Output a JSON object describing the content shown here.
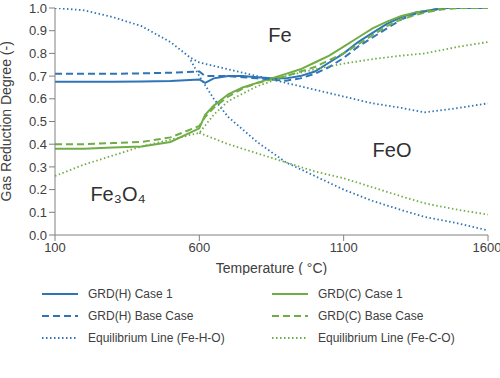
{
  "chart_data": {
    "type": "line",
    "x_label": "Temperature ( °C)",
    "y_label": "Gas Reduction Degree (-)",
    "xlim": [
      100,
      1600
    ],
    "xticks": [
      100,
      600,
      1100,
      1600
    ],
    "ylim": [
      0,
      1
    ],
    "yticks": [
      {
        "value": 0,
        "label": "0.0"
      },
      {
        "value": 0.1,
        "label": "0.1"
      },
      {
        "value": 0.2,
        "label": "0.2"
      },
      {
        "value": 0.3,
        "label": "0.3"
      },
      {
        "value": 0.4,
        "label": "0.4"
      },
      {
        "value": 0.5,
        "label": "0.5"
      },
      {
        "value": 0.6,
        "label": "0.6"
      },
      {
        "value": 0.7,
        "label": "0.7"
      },
      {
        "value": 0.8,
        "label": "0.8"
      },
      {
        "value": 0.9,
        "label": "0.9"
      },
      {
        "value": 1,
        "label": "1.0"
      }
    ],
    "grid": false,
    "legend": "bottom",
    "annotations": [
      "Fe",
      "FeO",
      "Fe₃O₄"
    ],
    "series": [
      {
        "name": "GRD(H) Case 1",
        "color": "#2e75b6",
        "line_style": "solid",
        "x": [
          100,
          200,
          300,
          400,
          500,
          600,
          620,
          650,
          700,
          750,
          800,
          850,
          900,
          950,
          1000,
          1050,
          1100,
          1150,
          1200,
          1250,
          1300,
          1350,
          1400,
          1450,
          1500,
          1550,
          1600
        ],
        "values": [
          0.675,
          0.675,
          0.675,
          0.676,
          0.678,
          0.685,
          0.67,
          0.69,
          0.7,
          0.7,
          0.695,
          0.69,
          0.69,
          0.7,
          0.72,
          0.76,
          0.8,
          0.85,
          0.89,
          0.93,
          0.96,
          0.98,
          0.99,
          1.0,
          1.0,
          1.0,
          1.0
        ]
      },
      {
        "name": "GRD(C) Case 1",
        "color": "#70ad47",
        "line_style": "solid",
        "x": [
          100,
          200,
          300,
          400,
          500,
          600,
          620,
          650,
          700,
          750,
          800,
          850,
          900,
          950,
          1000,
          1050,
          1100,
          1150,
          1200,
          1250,
          1300,
          1350,
          1400,
          1450,
          1500,
          1550,
          1600
        ],
        "values": [
          0.38,
          0.38,
          0.385,
          0.39,
          0.41,
          0.47,
          0.53,
          0.57,
          0.62,
          0.65,
          0.67,
          0.69,
          0.71,
          0.73,
          0.76,
          0.79,
          0.83,
          0.87,
          0.91,
          0.94,
          0.965,
          0.98,
          0.99,
          1.0,
          1.0,
          1.0,
          1.0
        ]
      },
      {
        "name": "GRD(H) Base Case",
        "color": "#2e75b6",
        "line_style": "dashed",
        "x": [
          100,
          200,
          300,
          400,
          500,
          600,
          620,
          650,
          700,
          750,
          800,
          850,
          900,
          950,
          1000,
          1050,
          1100,
          1150,
          1200,
          1250,
          1300,
          1350,
          1400,
          1450,
          1500,
          1550,
          1600
        ],
        "values": [
          0.71,
          0.71,
          0.71,
          0.712,
          0.715,
          0.72,
          0.7,
          0.7,
          0.7,
          0.695,
          0.69,
          0.685,
          0.68,
          0.69,
          0.71,
          0.74,
          0.78,
          0.83,
          0.87,
          0.91,
          0.95,
          0.975,
          0.99,
          1.0,
          1.0,
          1.0,
          1.0
        ]
      },
      {
        "name": "GRD(C) Base Case",
        "color": "#70ad47",
        "line_style": "dashed",
        "x": [
          100,
          200,
          300,
          400,
          500,
          600,
          620,
          650,
          700,
          750,
          800,
          850,
          900,
          950,
          1000,
          1050,
          1100,
          1150,
          1200,
          1250,
          1300,
          1350,
          1400,
          1450,
          1500,
          1550,
          1600
        ],
        "values": [
          0.4,
          0.4,
          0.405,
          0.41,
          0.43,
          0.48,
          0.52,
          0.56,
          0.61,
          0.645,
          0.67,
          0.685,
          0.7,
          0.72,
          0.74,
          0.77,
          0.8,
          0.84,
          0.88,
          0.92,
          0.95,
          0.97,
          0.985,
          0.995,
          1.0,
          1.0,
          1.0
        ]
      },
      {
        "name": "Equilibrium Line (Fe-H-O)",
        "color": "#2e75b6",
        "line_style": "dotted",
        "x": [
          100,
          200,
          300,
          400,
          500,
          570,
          600,
          700,
          800,
          900,
          1000,
          1100,
          1200,
          1300,
          1380,
          1500,
          1600,
          570,
          570,
          600,
          650,
          700,
          800,
          900,
          1000,
          1100,
          1200,
          1300,
          1380,
          1500,
          1600
        ],
        "values": [
          1.0,
          0.99,
          0.96,
          0.92,
          0.85,
          0.78,
          0.76,
          0.73,
          0.7,
          0.67,
          0.64,
          0.61,
          0.58,
          0.56,
          0.54,
          0.56,
          0.58,
          null,
          0.77,
          0.7,
          0.6,
          0.52,
          0.41,
          0.32,
          0.26,
          0.2,
          0.15,
          0.11,
          0.08,
          0.05,
          0.02
        ]
      },
      {
        "name": "Equilibrium Line (Fe-C-O)",
        "color": "#70ad47",
        "line_style": "dotted",
        "x": [
          100,
          200,
          300,
          400,
          500,
          600,
          650,
          700,
          800,
          900,
          1000,
          1100,
          1200,
          1300,
          1380,
          1500,
          1600,
          600,
          600,
          700,
          800,
          900,
          1000,
          1100,
          1200,
          1300,
          1380,
          1500,
          1600
        ],
        "values": [
          0.26,
          0.31,
          0.35,
          0.39,
          0.42,
          0.45,
          0.53,
          0.59,
          0.655,
          0.7,
          0.73,
          0.755,
          0.775,
          0.79,
          0.8,
          0.83,
          0.85,
          null,
          0.45,
          0.4,
          0.36,
          0.32,
          0.28,
          0.25,
          0.21,
          0.17,
          0.14,
          0.11,
          0.09
        ]
      }
    ]
  }
}
